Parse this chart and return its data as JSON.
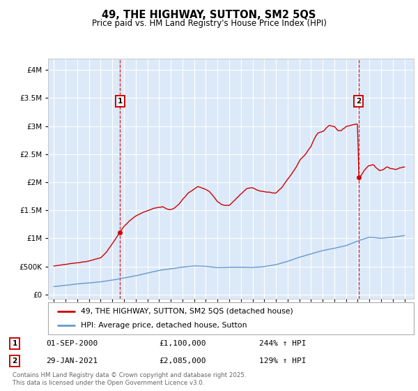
{
  "title": "49, THE HIGHWAY, SUTTON, SM2 5QS",
  "subtitle": "Price paid vs. HM Land Registry's House Price Index (HPI)",
  "legend_label_red": "49, THE HIGHWAY, SUTTON, SM2 5QS (detached house)",
  "legend_label_blue": "HPI: Average price, detached house, Sutton",
  "annotation1_date": "01-SEP-2000",
  "annotation1_value": "£1,100,000",
  "annotation1_hpi": "244% ↑ HPI",
  "annotation1_year": 2000.67,
  "annotation1_price": 1100000,
  "annotation2_date": "29-JAN-2021",
  "annotation2_value": "£2,085,000",
  "annotation2_hpi": "129% ↑ HPI",
  "annotation2_year": 2021.08,
  "annotation2_price": 2085000,
  "footnote": "Contains HM Land Registry data © Crown copyright and database right 2025.\nThis data is licensed under the Open Government Licence v3.0.",
  "bg_color": "#dce9f8",
  "red_color": "#cc0000",
  "blue_color": "#6699cc",
  "ylim_max": 4200000,
  "ylim_min": -80000,
  "xlim_min": 1994.5,
  "xlim_max": 2025.8
}
